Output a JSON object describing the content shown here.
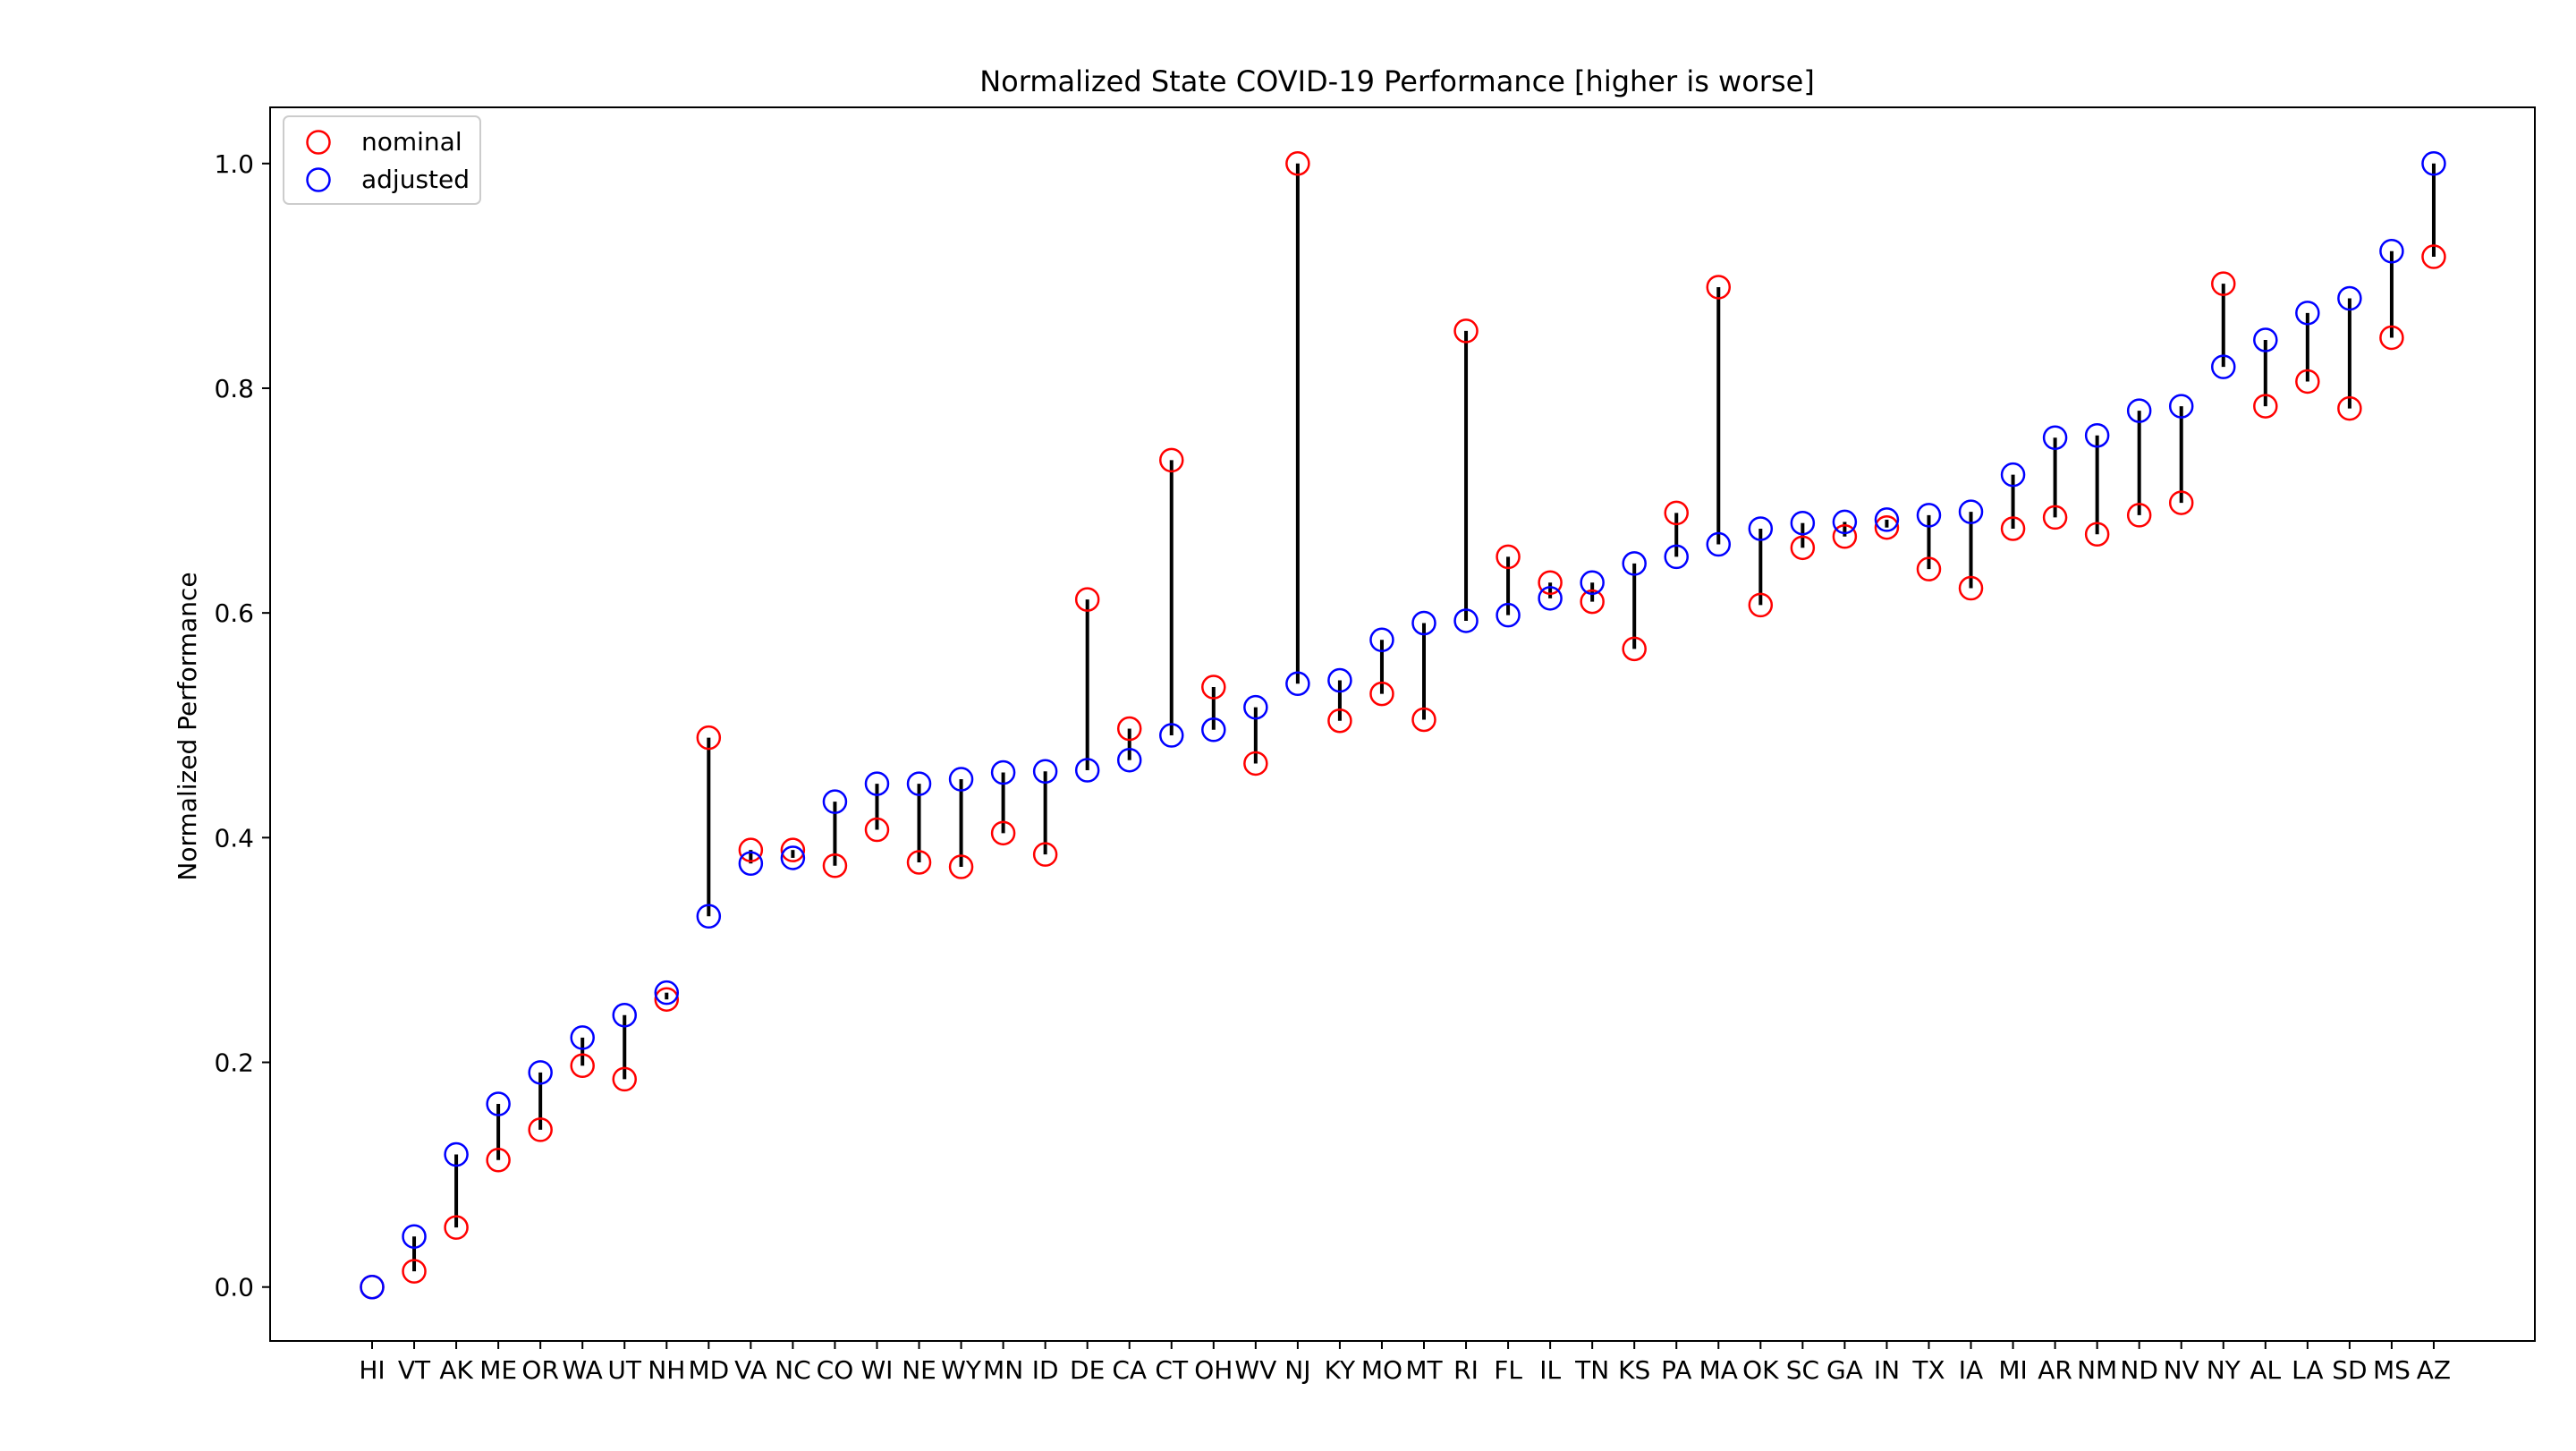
{
  "chart_data": {
    "type": "scatter",
    "title": "Normalized State COVID-19 Performance [higher is worse]",
    "xlabel": "",
    "ylabel": "Normalized Performance",
    "ylim": [
      -0.048,
      1.05
    ],
    "yticks": [
      "0.0",
      "0.2",
      "0.4",
      "0.6",
      "0.8",
      "1.0"
    ],
    "grid": false,
    "legend_position": "top-left",
    "categories": [
      "HI",
      "VT",
      "AK",
      "ME",
      "OR",
      "WA",
      "UT",
      "NH",
      "MD",
      "VA",
      "NC",
      "CO",
      "WI",
      "NE",
      "WY",
      "MN",
      "ID",
      "DE",
      "CA",
      "CT",
      "OH",
      "WV",
      "NJ",
      "KY",
      "MO",
      "MT",
      "RI",
      "FL",
      "IL",
      "TN",
      "KS",
      "PA",
      "MA",
      "OK",
      "SC",
      "GA",
      "IN",
      "TX",
      "IA",
      "MI",
      "AR",
      "NM",
      "ND",
      "NV",
      "NY",
      "AL",
      "LA",
      "SD",
      "MS",
      "AZ"
    ],
    "series": [
      {
        "name": "nominal",
        "color": "#ff0000",
        "values": [
          0.0,
          0.014,
          0.053,
          0.113,
          0.14,
          0.197,
          0.185,
          0.256,
          0.489,
          0.389,
          0.389,
          0.375,
          0.407,
          0.378,
          0.374,
          0.404,
          0.385,
          0.612,
          0.497,
          0.736,
          0.534,
          0.466,
          1.0,
          0.504,
          0.528,
          0.505,
          0.851,
          0.65,
          0.627,
          0.61,
          0.568,
          0.689,
          0.89,
          0.607,
          0.658,
          0.668,
          0.676,
          0.639,
          0.622,
          0.675,
          0.685,
          0.67,
          0.687,
          0.698,
          0.893,
          0.784,
          0.806,
          0.782,
          0.845,
          0.917
        ]
      },
      {
        "name": "adjusted",
        "color": "#0000ff",
        "values": [
          0.0,
          0.045,
          0.118,
          0.163,
          0.191,
          0.222,
          0.242,
          0.262,
          0.33,
          0.377,
          0.382,
          0.432,
          0.448,
          0.448,
          0.452,
          0.458,
          0.459,
          0.46,
          0.469,
          0.491,
          0.496,
          0.516,
          0.537,
          0.54,
          0.576,
          0.591,
          0.593,
          0.598,
          0.613,
          0.627,
          0.644,
          0.65,
          0.661,
          0.675,
          0.68,
          0.681,
          0.683,
          0.687,
          0.69,
          0.723,
          0.756,
          0.758,
          0.78,
          0.784,
          0.819,
          0.843,
          0.867,
          0.88,
          0.922,
          1.0
        ]
      }
    ]
  }
}
